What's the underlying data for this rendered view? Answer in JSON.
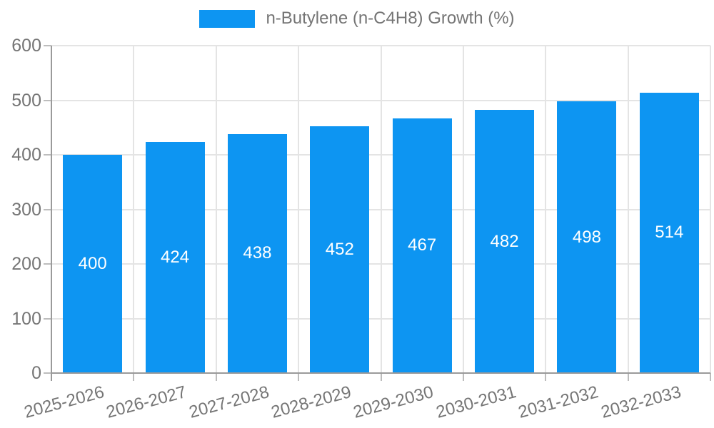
{
  "chart_data": {
    "type": "bar",
    "series_name": "n-Butylene (n-C4H8) Growth (%)",
    "categories": [
      "2025-2026",
      "2026-2027",
      "2027-2028",
      "2028-2029",
      "2029-2030",
      "2030-2031",
      "2031-2032",
      "2032-2033"
    ],
    "values": [
      400,
      424,
      438,
      452,
      467,
      482,
      498,
      514
    ],
    "value_labels": [
      "400",
      "424",
      "438",
      "452",
      "467",
      "482",
      "498",
      "514"
    ],
    "ylim": [
      0,
      600
    ],
    "yticks": [
      0,
      100,
      200,
      300,
      400,
      500,
      600
    ],
    "grid": true,
    "legend_position": "top-center",
    "xlabel": "",
    "ylabel": "",
    "colors": {
      "bar": "#0d95f2",
      "value_label": "#ffffff",
      "axis_text": "#757575",
      "grid_line": "#e4e4e4",
      "axis_line": "#9a9a9a",
      "tick_line": "#bdbdbd"
    }
  }
}
